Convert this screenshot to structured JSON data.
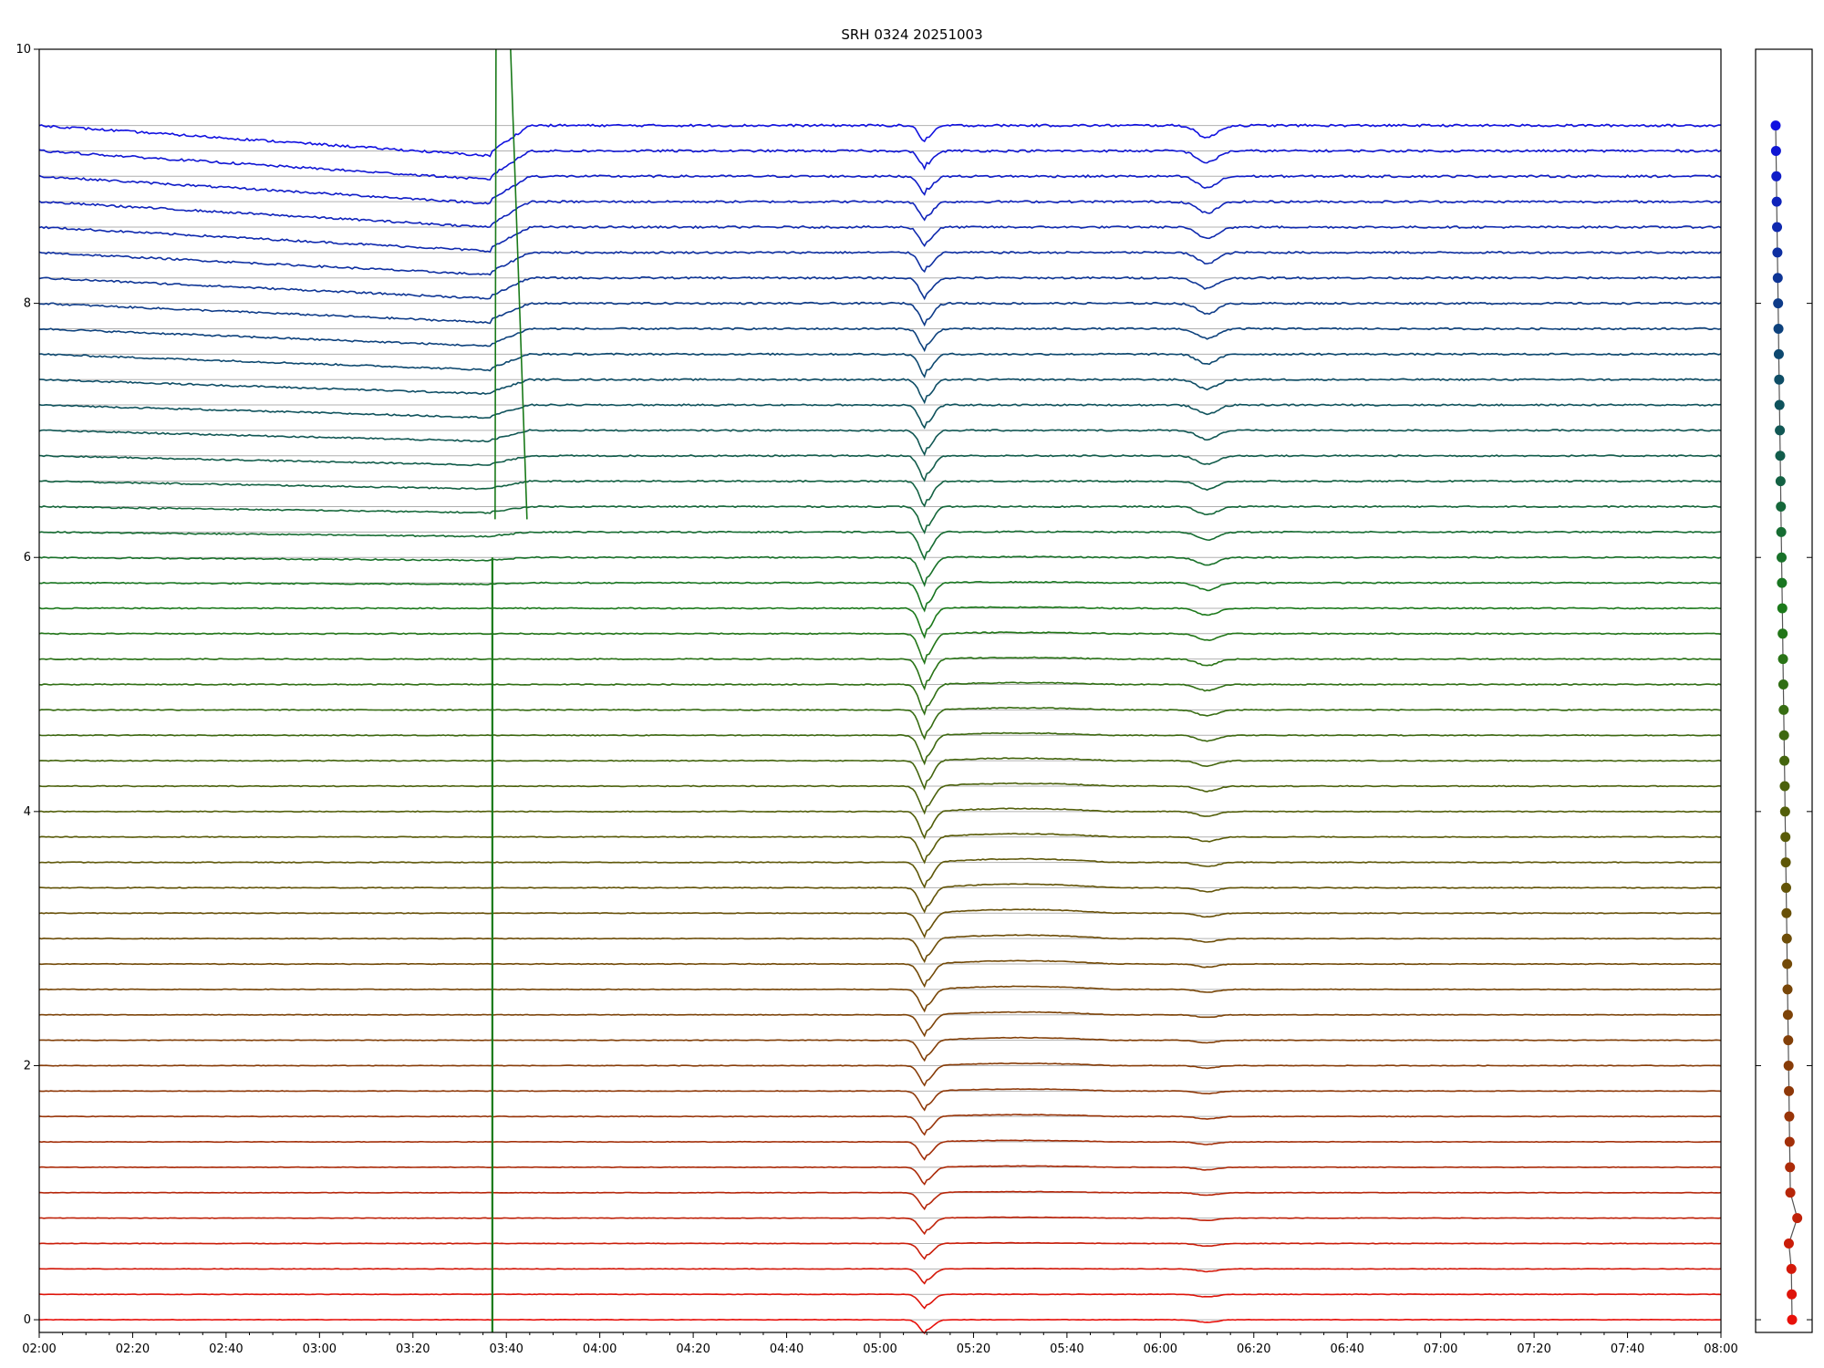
{
  "chart_data": {
    "type": "line",
    "title": "SRH 0324 20251003",
    "xlabel": "",
    "ylabel": "",
    "x_range": [
      "02:00",
      "08:00"
    ],
    "x_ticks": [
      "02:00",
      "02:20",
      "02:40",
      "03:00",
      "03:20",
      "03:40",
      "04:00",
      "04:20",
      "04:40",
      "05:00",
      "05:20",
      "05:40",
      "06:00",
      "06:20",
      "06:40",
      "07:00",
      "07:20",
      "07:40",
      "08:00"
    ],
    "ylim": [
      -0.1,
      10
    ],
    "y_ticks": [
      "0",
      "2",
      "4",
      "6",
      "8",
      "10"
    ],
    "grid": true,
    "n_channels": 48,
    "channel_baselines": [
      0.0,
      0.2,
      0.4,
      0.6,
      0.8,
      1.0,
      1.2,
      1.4,
      1.6,
      1.8,
      2.0,
      2.2,
      2.4,
      2.6,
      2.8,
      3.0,
      3.2,
      3.4,
      3.6,
      3.8,
      4.0,
      4.2,
      4.4,
      4.6,
      4.8,
      5.0,
      5.2,
      5.4,
      5.6,
      5.8,
      6.0,
      6.2,
      6.4,
      6.6,
      6.8,
      7.0,
      7.2,
      7.4,
      7.6,
      7.8,
      8.0,
      8.2,
      8.4,
      8.6,
      8.8,
      9.0,
      9.2,
      9.4
    ],
    "color_gradient": [
      "#e8100a",
      "#8a3a08",
      "#5a5a08",
      "#1a7a1a",
      "#0d4a6a",
      "#1010e0"
    ],
    "events": [
      {
        "time": "03:37",
        "label": "",
        "description": "vertical spike artefact"
      },
      {
        "time": "05:10",
        "label": "",
        "description": "main dip across channels"
      },
      {
        "time": "06:10",
        "label": "",
        "description": "secondary dip"
      }
    ],
    "side_panel": {
      "type": "scatter",
      "description": "per-channel marker, one dot per channel from bottom (red) to top (blue)",
      "offsets": [
        0.0,
        0.0,
        0.0,
        -0.2,
        0.6,
        0.0,
        0.0,
        0.0,
        0.0,
        0.0,
        0.0,
        0.0,
        0.0,
        0.0,
        0.0,
        0.0,
        0.0,
        0.0,
        0.0,
        0.0,
        0.0,
        0.0,
        0.0,
        0.0,
        0.0,
        0.0,
        0.0,
        0.0,
        0.0,
        0.0,
        0.0,
        0.0,
        0.0,
        0.0,
        0.0,
        0.0,
        0.0,
        0.0,
        0.0,
        0.0,
        0.0,
        0.0,
        0.0,
        0.0,
        0.0,
        0.0,
        0.0,
        0.0
      ]
    }
  }
}
